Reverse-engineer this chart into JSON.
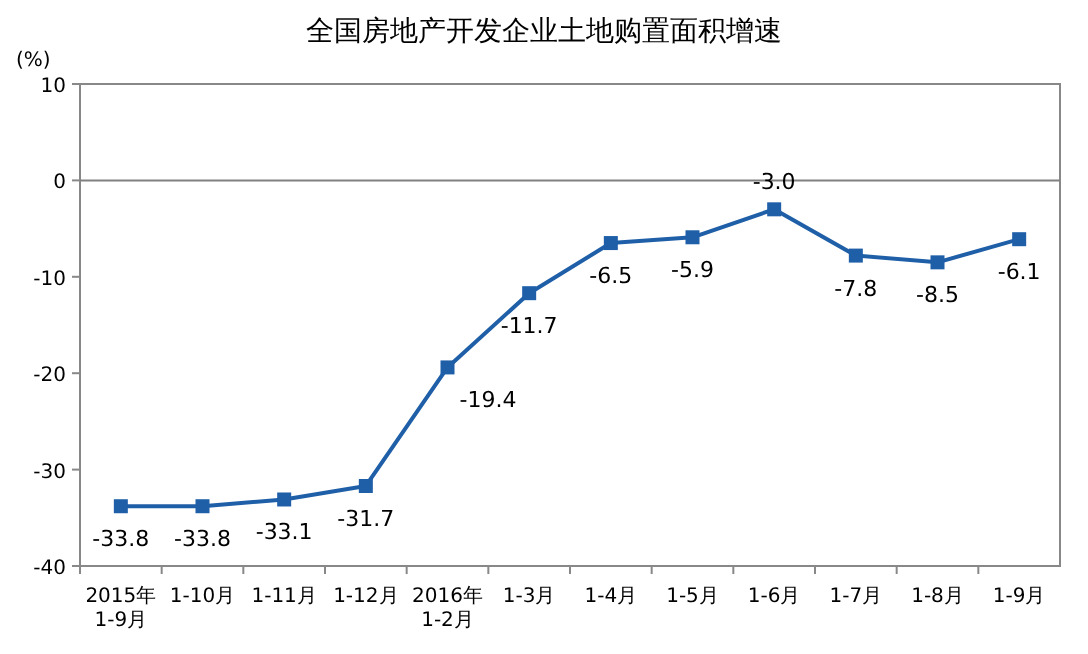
{
  "chart_data": {
    "type": "line",
    "title": "全国房地产开发企业土地购置面积增速",
    "ylabel": "(%)",
    "categories": [
      "2015年\n1-9月",
      "1-10月",
      "1-11月",
      "1-12月",
      "2016年\n1-2月",
      "1-3月",
      "1-4月",
      "1-5月",
      "1-6月",
      "1-7月",
      "1-8月",
      "1-9月"
    ],
    "series": [
      {
        "color": "#1f5fa8",
        "values": [
          -33.8,
          -33.8,
          -33.1,
          -31.7,
          -19.4,
          -11.7,
          -6.5,
          -5.9,
          -3.0,
          -7.8,
          -8.5,
          -6.1
        ],
        "value_labels": [
          "-33.8",
          "-33.8",
          "-33.1",
          "-31.7",
          "-19.4",
          "-11.7",
          "-6.5",
          "-5.9",
          "-3.0",
          "-7.8",
          "-8.5",
          "-6.1"
        ]
      }
    ],
    "ylim": [
      -40,
      10
    ],
    "yticks": [
      -40,
      -30,
      -20,
      -10,
      0,
      10
    ],
    "grid": false,
    "marker": "square",
    "line_style": "solid",
    "ref_lines": [
      {
        "axis": "y",
        "value": 0,
        "color": "#808080"
      }
    ]
  }
}
